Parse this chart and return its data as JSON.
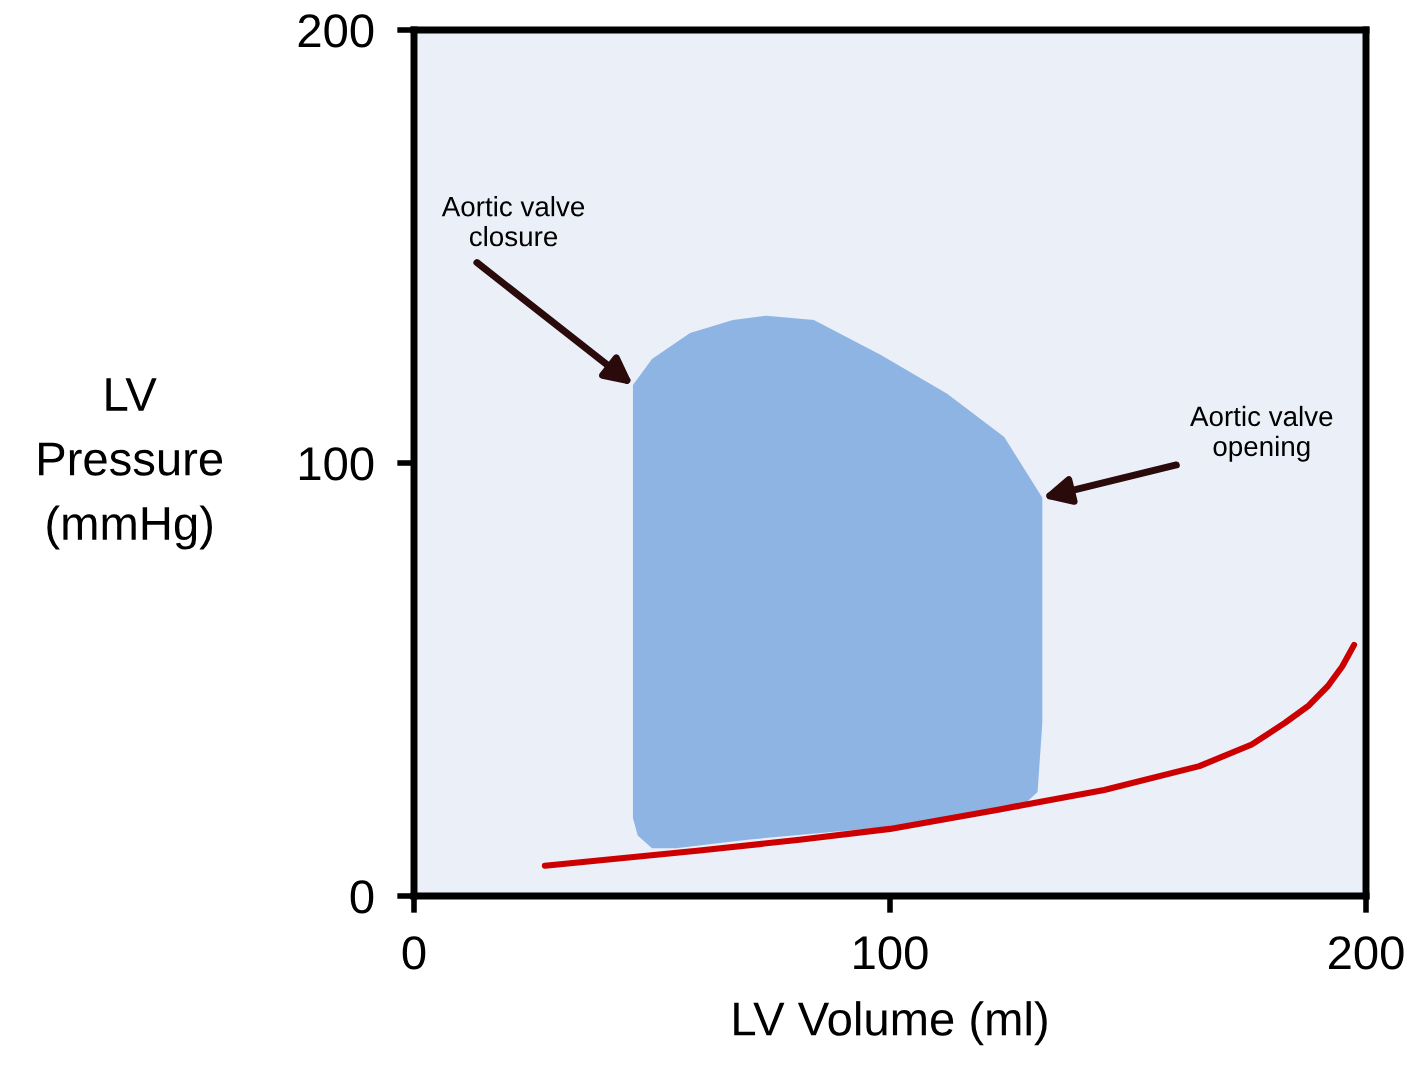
{
  "chart_data": {
    "type": "line",
    "xlabel": "LV Volume (ml)",
    "ylabel": "LV\nPressure\n(mmHg)",
    "xlim": [
      0,
      200
    ],
    "ylim": [
      0,
      200
    ],
    "xticks": [
      0,
      100,
      200
    ],
    "yticks": [
      0,
      100,
      200
    ],
    "grid": false,
    "legend": false,
    "series": [
      {
        "type": "area",
        "color": "#8db4e2",
        "x": [
          46,
          50,
          58,
          67,
          74,
          84,
          98,
          112,
          124,
          132,
          132,
          132,
          131,
          127,
          100,
          70,
          55,
          50,
          47,
          46,
          46,
          46
        ],
        "values": [
          118,
          124,
          130,
          133,
          134,
          133,
          125,
          116,
          106,
          92,
          70,
          40,
          24,
          20,
          16,
          13,
          11,
          11,
          14,
          18,
          50,
          90
        ]
      },
      {
        "color": "#cc0000",
        "x": [
          27.5,
          60,
          81,
          100,
          123,
          145,
          165,
          176,
          183,
          188,
          192,
          195,
          197.5
        ],
        "values": [
          7,
          10.5,
          13,
          15.5,
          20,
          24.5,
          30,
          35,
          40,
          44,
          48.5,
          53,
          58
        ]
      }
    ],
    "annotations": [
      {
        "text": "Aortic valve\nclosure",
        "x": 46,
        "y": 118
      },
      {
        "text": "Aortic valve\nopening",
        "x": 132,
        "y": 92
      }
    ]
  }
}
